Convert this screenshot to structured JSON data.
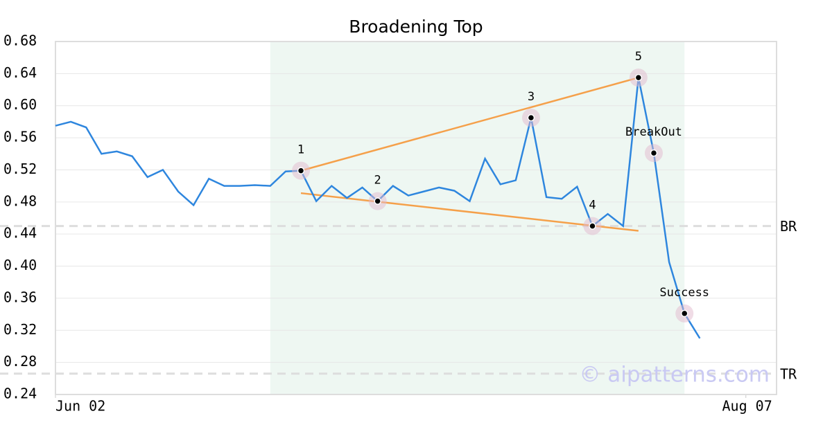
{
  "chart_data": {
    "type": "line",
    "title": "Broadening Top",
    "series": [
      {
        "color": "#2e86de",
        "x": [
          0,
          1,
          2,
          3,
          4,
          5,
          6,
          7,
          8,
          9,
          10,
          11,
          12,
          13,
          14,
          15,
          16,
          17,
          18,
          19,
          20,
          21,
          22,
          23,
          24,
          25,
          26,
          27,
          28,
          29,
          30,
          31,
          32,
          33,
          34,
          35,
          36,
          37,
          38,
          39,
          40,
          41,
          42
        ],
        "values": [
          0.575,
          0.58,
          0.573,
          0.54,
          0.543,
          0.537,
          0.511,
          0.52,
          0.493,
          0.476,
          0.509,
          0.5,
          0.5,
          0.501,
          0.5,
          0.518,
          0.519,
          0.481,
          0.5,
          0.485,
          0.498,
          0.481,
          0.5,
          0.488,
          0.493,
          0.498,
          0.494,
          0.481,
          0.534,
          0.502,
          0.507,
          0.585,
          0.486,
          0.484,
          0.499,
          0.45,
          0.465,
          0.45,
          0.635,
          0.541,
          0.405,
          0.341,
          0.31
        ]
      }
    ],
    "xlim": [
      0,
      47
    ],
    "xticks": [
      {
        "value": 0,
        "label": "Jun 02"
      },
      {
        "value": 45,
        "label": "Aug 07"
      }
    ],
    "ylim": [
      0.24,
      0.68
    ],
    "yticks": [
      0.24,
      0.28,
      0.32,
      0.36,
      {
        "value": 0.4,
        "label": "0.40"
      },
      0.44,
      0.48,
      0.52,
      0.56,
      {
        "value": 0.6,
        "label": "0.60"
      },
      0.64,
      0.68
    ],
    "grid": true,
    "highlight_range": [
      14,
      41
    ],
    "highlight_color": "#eef7f2",
    "trendlines": [
      {
        "x": [
          16,
          38
        ],
        "values": [
          0.519,
          0.635
        ],
        "color": "#f5a04a"
      },
      {
        "x": [
          16,
          38
        ],
        "values": [
          0.491,
          0.444
        ],
        "color": "#f5a04a"
      }
    ],
    "levels": [
      {
        "label": "BR",
        "value": 0.45
      },
      {
        "label": "TR",
        "value": 0.266
      }
    ],
    "points": [
      {
        "label": "1",
        "index": 16
      },
      {
        "label": "2",
        "index": 21
      },
      {
        "label": "3",
        "index": 31
      },
      {
        "label": "4",
        "index": 35
      },
      {
        "label": "5",
        "index": 38
      },
      {
        "label": "BreakOut",
        "index": 39
      },
      {
        "label": "Success",
        "index": 41
      }
    ],
    "watermark": "© aipatterns.com"
  }
}
